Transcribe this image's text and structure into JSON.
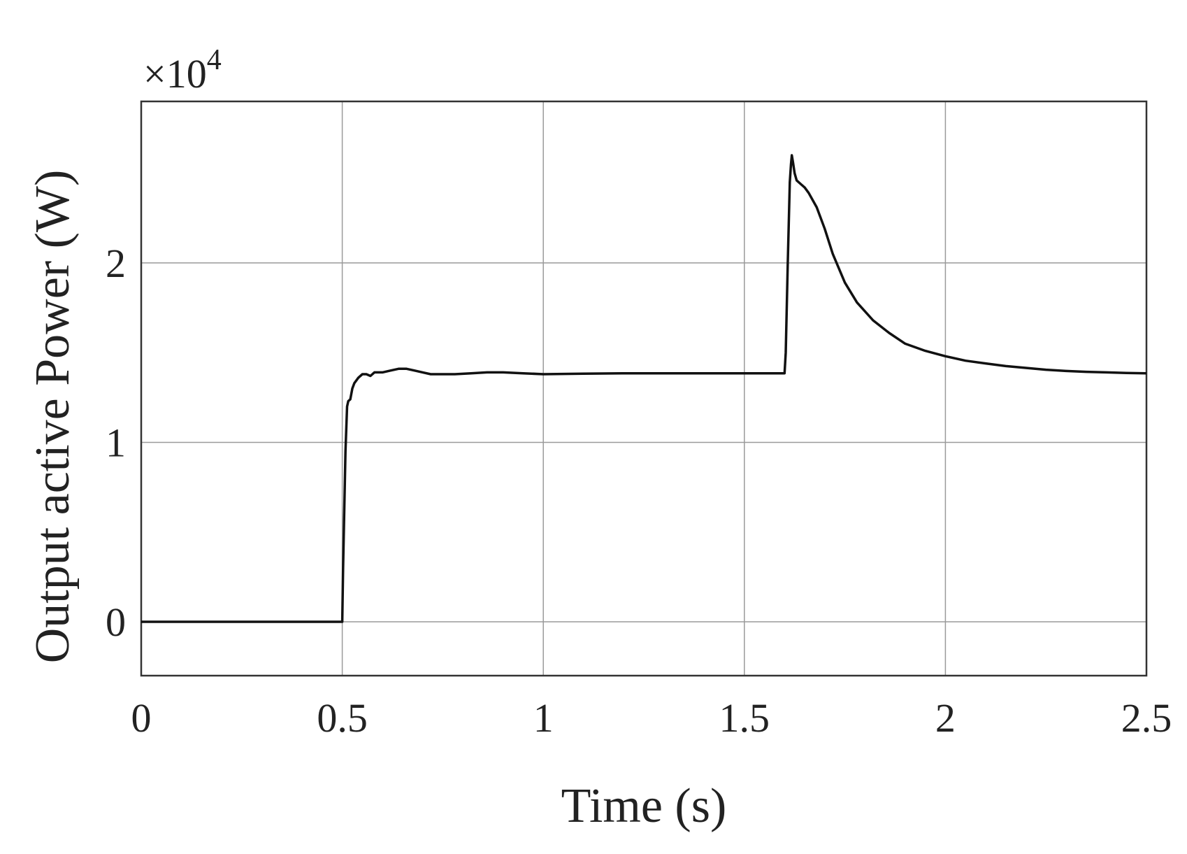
{
  "chart_data": {
    "type": "line",
    "title": "",
    "xlabel": "Time (s)",
    "ylabel": "Output active Power (W)",
    "y_multiplier": {
      "base": "×10",
      "exponent": "4"
    },
    "xlim": [
      0,
      2.5
    ],
    "ylim": [
      -0.3,
      2.9
    ],
    "xticks": [
      0,
      0.5,
      1,
      1.5,
      2,
      2.5
    ],
    "xtick_labels": [
      "0",
      "0.5",
      "1",
      "1.5",
      "2",
      "2.5"
    ],
    "yticks": [
      0,
      1,
      2
    ],
    "ytick_labels": [
      "0",
      "1",
      "2"
    ],
    "grid": true,
    "line_color": "#111111",
    "series": [
      {
        "values_scale": "×10^4",
        "x": [
          0,
          0.5,
          0.502,
          0.508,
          0.512,
          0.515,
          0.52,
          0.525,
          0.53,
          0.54,
          0.55,
          0.56,
          0.57,
          0.58,
          0.6,
          0.62,
          0.64,
          0.66,
          0.68,
          0.7,
          0.72,
          0.75,
          0.78,
          0.82,
          0.86,
          0.9,
          0.95,
          1.0,
          1.1,
          1.2,
          1.3,
          1.4,
          1.5,
          1.6,
          1.603,
          1.608,
          1.613,
          1.616,
          1.618,
          1.621,
          1.625,
          1.63,
          1.64,
          1.65,
          1.66,
          1.68,
          1.7,
          1.72,
          1.75,
          1.78,
          1.82,
          1.86,
          1.9,
          1.95,
          2.0,
          2.05,
          2.1,
          2.15,
          2.2,
          2.25,
          2.3,
          2.35,
          2.4,
          2.45,
          2.5
        ],
        "values": [
          0,
          0,
          0.3,
          0.95,
          1.2,
          1.23,
          1.24,
          1.3,
          1.33,
          1.36,
          1.38,
          1.38,
          1.37,
          1.39,
          1.39,
          1.4,
          1.41,
          1.41,
          1.4,
          1.39,
          1.38,
          1.38,
          1.38,
          1.385,
          1.39,
          1.39,
          1.385,
          1.38,
          1.383,
          1.385,
          1.385,
          1.385,
          1.385,
          1.385,
          1.5,
          2.0,
          2.45,
          2.55,
          2.6,
          2.56,
          2.5,
          2.46,
          2.44,
          2.42,
          2.39,
          2.31,
          2.19,
          2.05,
          1.89,
          1.78,
          1.68,
          1.61,
          1.55,
          1.51,
          1.48,
          1.455,
          1.44,
          1.425,
          1.415,
          1.405,
          1.398,
          1.393,
          1.39,
          1.387,
          1.385
        ]
      }
    ]
  }
}
